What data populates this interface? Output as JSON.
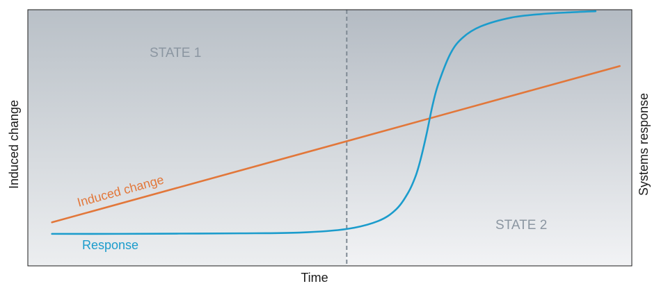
{
  "chart_data": {
    "type": "line",
    "title": "",
    "xlabel": "Time",
    "ylabel_left": "Induced change",
    "ylabel_right": "Systems response",
    "xlim": [
      0,
      100
    ],
    "ylim": [
      0,
      100
    ],
    "grid": false,
    "threshold_x": 52.8,
    "regions": [
      {
        "label": "STATE 1",
        "x_range": [
          0,
          52.8
        ],
        "colors": [
          "#b9c0c7",
          "#eceef0"
        ]
      },
      {
        "label": "STATE 2",
        "x_range": [
          52.8,
          100
        ],
        "colors": [
          "#b4bbc3",
          "#f2f3f5"
        ]
      }
    ],
    "series": [
      {
        "name": "Induced change",
        "color": "#e2773a",
        "x": [
          4,
          98
        ],
        "y": [
          17,
          78
        ]
      },
      {
        "name": "Response",
        "color": "#1b9ccc",
        "x": [
          4,
          15,
          25,
          35,
          45,
          52.8,
          58,
          61,
          63,
          64.2,
          65,
          66,
          67,
          68,
          70,
          72,
          75,
          80,
          85,
          90,
          94
        ],
        "y": [
          12.5,
          12.5,
          12.6,
          12.7,
          13.0,
          14.4,
          17.5,
          22.1,
          28.7,
          35.0,
          41.3,
          51.3,
          62.6,
          71.3,
          83.0,
          89.1,
          93.5,
          96.9,
          98.3,
          99.0,
          99.4
        ]
      }
    ]
  }
}
